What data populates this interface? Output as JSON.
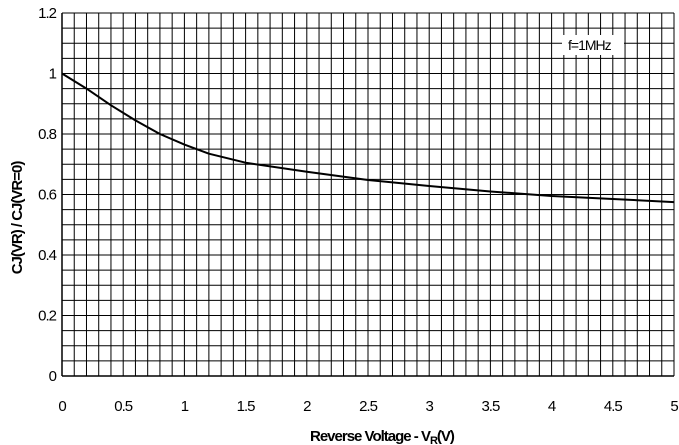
{
  "chart_data": {
    "type": "line",
    "x_label": "Reverse Voltage - V",
    "x_label_sub": "R",
    "x_label_unit": "(V)",
    "y_label": "CJ(VR) / CJ(VR=0)",
    "annotation": "f=1MHz",
    "x_ticks": [
      "0",
      "0.5",
      "1",
      "1.5",
      "2",
      "2.5",
      "3",
      "3.5",
      "4",
      "4.5",
      "5"
    ],
    "y_ticks": [
      "0",
      "0.2",
      "0.4",
      "0.6",
      "0.8",
      "1",
      "1.2"
    ],
    "xlim": [
      0,
      5
    ],
    "ylim": [
      0,
      1.2
    ],
    "x_minor_step": 0.1,
    "y_minor_step": 0.05,
    "grid": true,
    "series": [
      {
        "x": [
          0,
          0.2,
          0.4,
          0.6,
          0.8,
          1.0,
          1.2,
          1.5,
          2.0,
          2.5,
          3.0,
          3.5,
          4.0,
          4.5,
          5.0
        ],
        "values": [
          1.0,
          0.95,
          0.895,
          0.845,
          0.8,
          0.765,
          0.735,
          0.705,
          0.675,
          0.648,
          0.628,
          0.61,
          0.595,
          0.585,
          0.575
        ],
        "color": "#000000"
      }
    ]
  }
}
